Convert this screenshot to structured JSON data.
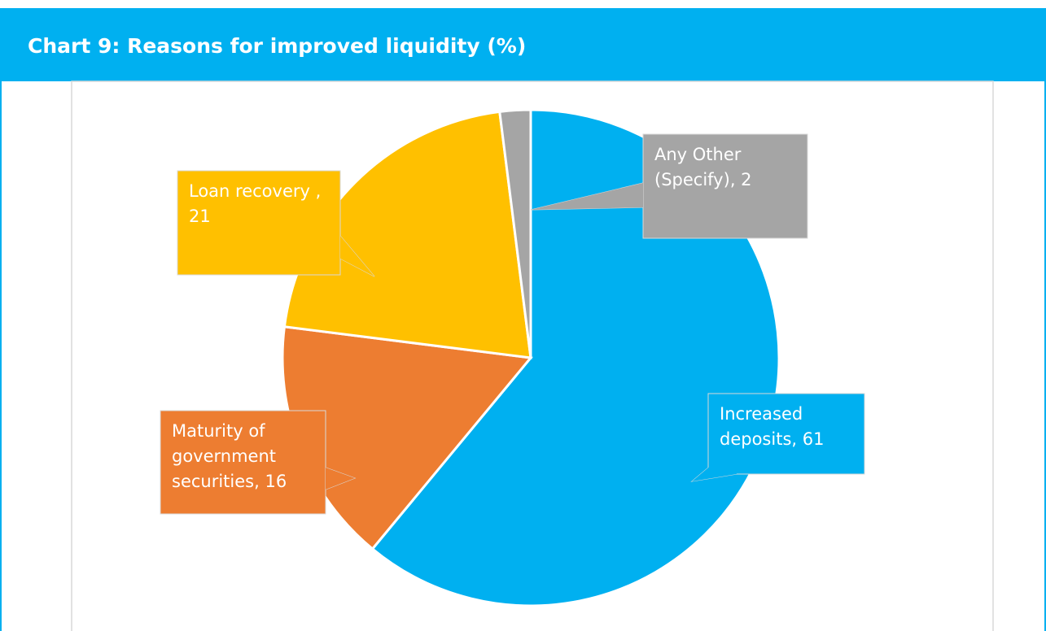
{
  "chart_data": {
    "type": "pie",
    "title": "Chart 9: Reasons for improved liquidity (%)",
    "categories": [
      "Increased deposits",
      "Maturity of government securities",
      "Loan recovery ",
      "Any Other (Specify)"
    ],
    "values": [
      61,
      16,
      21,
      2
    ],
    "label_separator": ", ",
    "colors": [
      "#00b0f0",
      "#ed7d31",
      "#ffc000",
      "#a5a5a5"
    ]
  }
}
